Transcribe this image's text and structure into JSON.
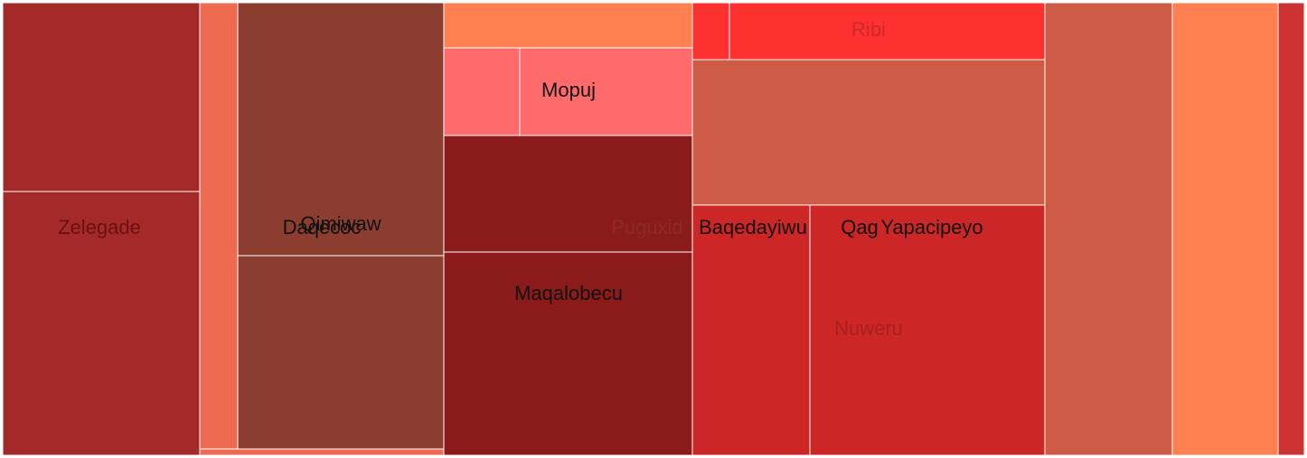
{
  "chart_data": {
    "type": "treemap",
    "title": "",
    "tiles": [
      {
        "label": "",
        "value": 6.5,
        "color": "#a42a2a"
      },
      {
        "label": "",
        "value": 8.8,
        "color": "#a42a2a"
      },
      {
        "label": "",
        "value": 2.9,
        "color": "#ee6a50"
      },
      {
        "label": "",
        "value": 0.3,
        "color": "#ee6a50"
      },
      {
        "label": "",
        "value": 9.1,
        "color": "#8b3e2f"
      },
      {
        "label": "",
        "value": 6.9,
        "color": "#8b3e2f"
      },
      {
        "label": "",
        "value": 1.9,
        "color": "#ff8050"
      },
      {
        "label": "",
        "value": 1.2,
        "color": "#ff6b6b"
      },
      {
        "label": "",
        "value": 3.0,
        "color": "#ff6b6b"
      },
      {
        "label": "",
        "value": 5.0,
        "color": "#8b1a1a"
      },
      {
        "label": "",
        "value": 8.6,
        "color": "#8b1a1a"
      },
      {
        "label": "",
        "value": 0.4,
        "color": "#ff3030"
      },
      {
        "label": "",
        "value": 3.3,
        "color": "#ff3030"
      },
      {
        "label": "",
        "value": 8.9,
        "color": "#cd5b45"
      },
      {
        "label": "",
        "value": 5.2,
        "color": "#cc2626"
      },
      {
        "label": "",
        "value": 10.5,
        "color": "#cc2626"
      },
      {
        "label": "",
        "value": 9.7,
        "color": "#cd5b45"
      },
      {
        "label": "",
        "value": 8.0,
        "color": "#ff8050"
      },
      {
        "label": "",
        "value": 2.0,
        "color": "#cd3333"
      }
    ],
    "labels": [
      {
        "text": "Zelegade",
        "color": "#6a1010"
      },
      {
        "text": "Qimiwaw",
        "color": "#111111"
      },
      {
        "text": "Daqecoc",
        "color": "#111111"
      },
      {
        "text": "Mopuj",
        "color": "#111111"
      },
      {
        "text": "Maqalobecu",
        "color": "#111111"
      },
      {
        "text": "Puguxid",
        "color": "#8b2a2a"
      },
      {
        "text": "Ribi",
        "color": "#cc2a2a"
      },
      {
        "text": "Baqedayiwu",
        "color": "#111111"
      },
      {
        "text": "Qag",
        "color": "#111111"
      },
      {
        "text": "Yapacipeyo",
        "color": "#111111"
      },
      {
        "text": "Nuweru",
        "color": "#a82020"
      }
    ]
  }
}
